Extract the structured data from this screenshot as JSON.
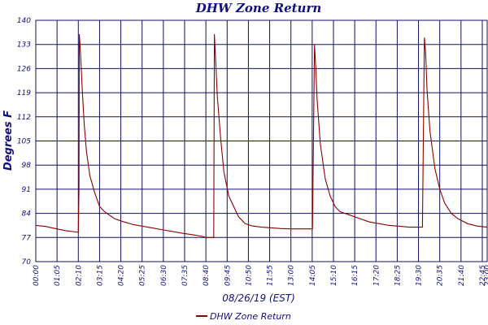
{
  "chart_data": {
    "type": "line",
    "title": "DHW Zone Return",
    "xlabel": "08/26/19 (EST)",
    "ylabel": "Degrees F",
    "ylim": [
      70,
      140
    ],
    "yticks": [
      70,
      77,
      84,
      91,
      98,
      105,
      112,
      119,
      126,
      133,
      140
    ],
    "xlim_minutes": [
      0,
      1380
    ],
    "xticks": [
      "00:00",
      "01:05",
      "02:10",
      "03:15",
      "04:20",
      "05:25",
      "06:30",
      "07:35",
      "08:40",
      "09:45",
      "10:50",
      "11:55",
      "13:00",
      "14:05",
      "15:10",
      "16:15",
      "17:20",
      "18:25",
      "19:30",
      "20:35",
      "21:40",
      "22:45",
      "23:00"
    ],
    "grid": true,
    "legend_position": "bottom",
    "series": [
      {
        "name": "DHW Zone Return",
        "color": "#8b0000",
        "x": [
          "00:00",
          "00:30",
          "01:00",
          "01:30",
          "02:10",
          "02:12",
          "02:13",
          "02:17",
          "02:22",
          "02:28",
          "02:35",
          "02:45",
          "03:00",
          "03:15",
          "03:30",
          "03:45",
          "04:00",
          "04:30",
          "05:00",
          "05:30",
          "06:00",
          "06:30",
          "07:00",
          "07:30",
          "08:00",
          "08:30",
          "08:40",
          "09:04",
          "09:06",
          "09:10",
          "09:15",
          "09:25",
          "09:35",
          "09:50",
          "10:05",
          "10:20",
          "10:40",
          "11:00",
          "11:30",
          "12:00",
          "12:30",
          "13:00",
          "13:30",
          "14:00",
          "14:05",
          "14:06",
          "14:12",
          "14:16",
          "14:20",
          "14:30",
          "14:45",
          "15:00",
          "15:15",
          "15:30",
          "16:00",
          "16:30",
          "17:00",
          "17:30",
          "18:00",
          "18:30",
          "19:00",
          "19:30",
          "19:40",
          "19:42",
          "19:48",
          "19:52",
          "19:56",
          "20:05",
          "20:20",
          "20:35",
          "20:50",
          "21:10",
          "21:30",
          "22:00",
          "22:30",
          "23:00"
        ],
        "y": [
          80.5,
          80.2,
          79.6,
          79.0,
          78.5,
          91,
          136,
          130,
          120,
          110,
          102,
          95,
          90,
          86,
          84.5,
          83.5,
          82.5,
          81.5,
          80.7,
          80.2,
          79.7,
          79.2,
          78.7,
          78.2,
          77.8,
          77.3,
          77.0,
          77.0,
          136,
          128,
          118,
          106,
          96,
          89,
          86,
          83,
          81,
          80.4,
          80.0,
          79.8,
          79.6,
          79.5,
          79.5,
          79.5,
          79.5,
          79.5,
          133,
          126,
          117,
          104,
          94,
          89,
          86,
          84.5,
          83.5,
          82.5,
          81.5,
          81.0,
          80.5,
          80.3,
          80.0,
          80.0,
          80.0,
          80.0,
          135,
          130,
          120,
          108,
          97,
          91,
          87,
          84,
          82.5,
          81,
          80.3,
          80.0
        ]
      }
    ]
  }
}
